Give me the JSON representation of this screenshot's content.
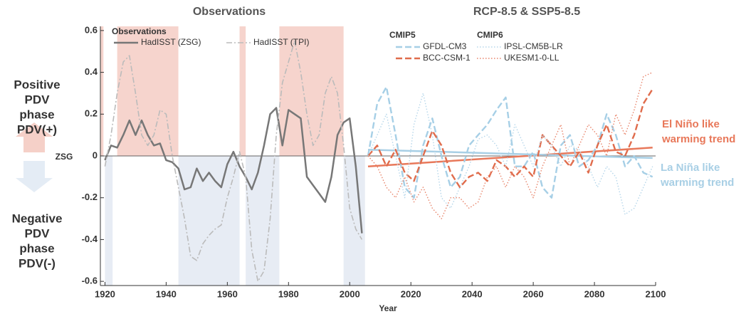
{
  "chart_data": {
    "type": "line",
    "titles": [
      "Observations",
      "RCP-8.5 & SSP5-8.5"
    ],
    "xlabel": "Year",
    "zero_label": "ZSG",
    "positive_label": [
      "Positive",
      "PDV",
      "phase",
      "PDV(+)"
    ],
    "negative_label": [
      "Negative",
      "PDV",
      "phase",
      "PDV(-)"
    ],
    "xlim": [
      1918.5,
      2100
    ],
    "ylim": [
      -0.62,
      0.62
    ],
    "xticks": [
      1920,
      1940,
      1960,
      1980,
      2000,
      2020,
      2040,
      2060,
      2080,
      2100
    ],
    "yticks": [
      -0.6,
      -0.4,
      -0.2,
      0,
      0.2,
      0.4,
      0.6
    ],
    "phase_colors": {
      "positive": "#f6d4cd",
      "negative": "#e7ecf4"
    },
    "phases": [
      {
        "start": 1918.5,
        "end": 1919.5,
        "sign": "positive"
      },
      {
        "start": 1920,
        "end": 1922.5,
        "sign": "negative"
      },
      {
        "start": 1924,
        "end": 1944,
        "sign": "positive"
      },
      {
        "start": 1944,
        "end": 1964,
        "sign": "negative"
      },
      {
        "start": 1964,
        "end": 1966,
        "sign": "positive"
      },
      {
        "start": 1966,
        "end": 1977,
        "sign": "negative"
      },
      {
        "start": 1977,
        "end": 1998,
        "sign": "positive"
      },
      {
        "start": 1998,
        "end": 2005,
        "sign": "negative"
      }
    ],
    "series": [
      {
        "name": "HadISST (ZSG)",
        "group": "Observations",
        "color": "#777777",
        "style": "solid",
        "x": [
          1920,
          1922,
          1924,
          1926,
          1928,
          1930,
          1932,
          1934,
          1936,
          1938,
          1940,
          1942,
          1944,
          1946,
          1948,
          1950,
          1952,
          1954,
          1956,
          1958,
          1960,
          1962,
          1964,
          1966,
          1968,
          1970,
          1972,
          1974,
          1976,
          1978,
          1980,
          1982,
          1984,
          1986,
          1988,
          1990,
          1992,
          1994,
          1996,
          1998,
          2000,
          2002,
          2004
        ],
        "values": [
          -0.02,
          0.05,
          0.04,
          0.1,
          0.17,
          0.1,
          0.17,
          0.1,
          0.05,
          0.06,
          -0.02,
          -0.03,
          -0.06,
          -0.16,
          -0.15,
          -0.06,
          -0.12,
          -0.08,
          -0.12,
          -0.15,
          -0.04,
          0.02,
          -0.05,
          -0.1,
          -0.16,
          -0.08,
          0.05,
          0.2,
          0.23,
          0.05,
          0.22,
          0.2,
          0.18,
          -0.1,
          -0.14,
          -0.18,
          -0.22,
          -0.1,
          0.1,
          0.16,
          0.18,
          -0.05,
          -0.37
        ]
      },
      {
        "name": "HadISST (TPI)",
        "group": "Observations",
        "color": "#bbbbbb",
        "style": "dashdot",
        "x": [
          1920,
          1922,
          1924,
          1926,
          1928,
          1930,
          1932,
          1934,
          1936,
          1938,
          1940,
          1942,
          1944,
          1946,
          1948,
          1950,
          1952,
          1954,
          1956,
          1958,
          1960,
          1962,
          1964,
          1966,
          1968,
          1970,
          1972,
          1974,
          1976,
          1978,
          1980,
          1982,
          1984,
          1986,
          1988,
          1990,
          1992,
          1994,
          1996,
          1998,
          2000,
          2002,
          2004
        ],
        "values": [
          -0.05,
          0.1,
          0.3,
          0.45,
          0.48,
          0.3,
          0.1,
          0.05,
          0.1,
          0.22,
          0.2,
          0.0,
          -0.15,
          -0.3,
          -0.48,
          -0.5,
          -0.42,
          -0.38,
          -0.35,
          -0.33,
          -0.2,
          -0.1,
          0.02,
          -0.1,
          -0.45,
          -0.6,
          -0.55,
          -0.3,
          0.1,
          0.35,
          0.45,
          0.55,
          0.4,
          0.2,
          0.05,
          0.1,
          0.3,
          0.38,
          0.3,
          0.05,
          -0.25,
          -0.35,
          -0.4
        ]
      },
      {
        "name": "GFDL-CM3",
        "group": "CMIP5",
        "color": "#a6cfe6",
        "style": "dashed",
        "x": [
          2006,
          2009,
          2012,
          2015,
          2018,
          2021,
          2024,
          2027,
          2030,
          2033,
          2036,
          2039,
          2042,
          2045,
          2048,
          2051,
          2054,
          2057,
          2060,
          2063,
          2066,
          2069,
          2072,
          2075,
          2078,
          2081,
          2084,
          2087,
          2090,
          2093,
          2096,
          2099
        ],
        "values": [
          0.0,
          0.25,
          0.33,
          0.1,
          -0.15,
          -0.2,
          0.05,
          0.18,
          0.0,
          -0.15,
          -0.1,
          0.05,
          0.1,
          0.15,
          0.22,
          0.28,
          -0.05,
          -0.05,
          0.02,
          -0.15,
          -0.2,
          0.05,
          0.1,
          -0.05,
          -0.02,
          0.05,
          0.2,
          0.1,
          -0.05,
          0.0,
          -0.08,
          -0.1
        ]
      },
      {
        "name": "BCC-CSM-1",
        "group": "CMIP5",
        "color": "#e06c4c",
        "style": "dashed",
        "x": [
          2006,
          2009,
          2012,
          2015,
          2018,
          2021,
          2024,
          2027,
          2030,
          2033,
          2036,
          2039,
          2042,
          2045,
          2048,
          2051,
          2054,
          2057,
          2060,
          2063,
          2066,
          2069,
          2072,
          2075,
          2078,
          2081,
          2084,
          2087,
          2090,
          2093,
          2096,
          2099
        ],
        "values": [
          0.0,
          0.05,
          -0.05,
          0.03,
          -0.08,
          -0.12,
          0.0,
          0.12,
          0.05,
          -0.08,
          -0.15,
          -0.1,
          -0.08,
          -0.12,
          -0.02,
          -0.05,
          -0.1,
          -0.05,
          -0.1,
          0.1,
          0.05,
          0.0,
          -0.05,
          0.02,
          -0.08,
          0.05,
          0.15,
          0.02,
          0.0,
          0.1,
          0.25,
          0.32
        ]
      },
      {
        "name": "IPSL-CM5B-LR",
        "group": "CMIP6",
        "color": "#b5d6ea",
        "style": "dotted",
        "x": [
          2006,
          2009,
          2012,
          2015,
          2018,
          2021,
          2024,
          2027,
          2030,
          2033,
          2036,
          2039,
          2042,
          2045,
          2048,
          2051,
          2054,
          2057,
          2060,
          2063,
          2066,
          2069,
          2072,
          2075,
          2078,
          2081,
          2084,
          2087,
          2090,
          2093,
          2096,
          2099
        ],
        "values": [
          0.0,
          0.1,
          0.2,
          0.0,
          -0.2,
          0.15,
          0.3,
          0.1,
          -0.2,
          -0.25,
          -0.15,
          -0.05,
          0.08,
          0.1,
          0.05,
          -0.05,
          0.15,
          0.05,
          -0.05,
          0.1,
          0.05,
          -0.05,
          0.05,
          0.03,
          -0.05,
          -0.15,
          -0.05,
          -0.1,
          -0.28,
          -0.25,
          -0.15,
          -0.05
        ]
      },
      {
        "name": "UKESM1-0-LL",
        "group": "CMIP6",
        "color": "#e8846a",
        "style": "dotted",
        "x": [
          2006,
          2009,
          2012,
          2015,
          2018,
          2021,
          2024,
          2027,
          2030,
          2033,
          2036,
          2039,
          2042,
          2045,
          2048,
          2051,
          2054,
          2057,
          2060,
          2063,
          2066,
          2069,
          2072,
          2075,
          2078,
          2081,
          2084,
          2087,
          2090,
          2093,
          2096,
          2099
        ],
        "values": [
          0.0,
          -0.05,
          -0.15,
          -0.2,
          -0.1,
          -0.22,
          -0.15,
          -0.25,
          -0.3,
          -0.2,
          -0.2,
          -0.25,
          -0.22,
          -0.1,
          -0.05,
          -0.15,
          -0.05,
          -0.1,
          -0.2,
          -0.05,
          0.05,
          0.15,
          -0.05,
          0.05,
          0.15,
          0.1,
          0.0,
          0.2,
          0.1,
          0.22,
          0.38,
          0.4
        ]
      }
    ],
    "trends": [
      {
        "label": [
          "El Niño like",
          "warming trend"
        ],
        "color": "#e8785a",
        "x": [
          2006,
          2099
        ],
        "values": [
          -0.05,
          0.04
        ]
      },
      {
        "label": [
          "La Niña like",
          "warming trend"
        ],
        "color": "#a8cfe5",
        "x": [
          2006,
          2099
        ],
        "values": [
          0.03,
          -0.01
        ]
      }
    ]
  }
}
